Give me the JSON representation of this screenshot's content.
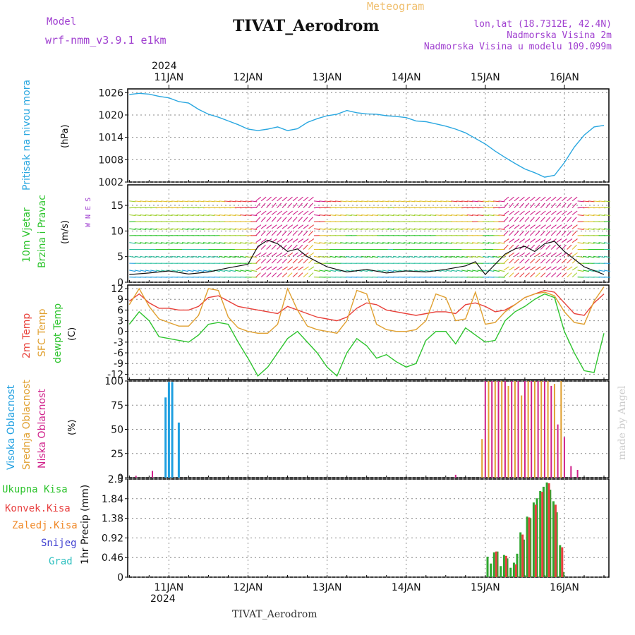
{
  "header": {
    "model_label": "Model",
    "model_name": "wrf-nmm_v3.9.1 e1km",
    "meteogram_label": "Meteogram",
    "station_title": "TIVAT_Aerodrom",
    "lonlat": "lon,lat (18.7312E, 42.4N)",
    "elevation": "Nadmorska Visina 2m",
    "model_elevation": "Nadmorska Visina u modelu 109.099m",
    "top_year": "2024",
    "bottom_year": "2024",
    "footer_station": "TIVAT_Aerodrom",
    "watermark": "made by Angel"
  },
  "colors": {
    "pressure": "#2aa7e0",
    "temp2m": "#e8413a",
    "sfc": "#e0a030",
    "dewpt": "#2ec42e",
    "high_cloud": "#1f9fe0",
    "mid_cloud": "#e0a030",
    "low_cloud": "#d0208a",
    "precip_total": "#2ea62e",
    "precip_conv": "#e84040",
    "precip_frz": "#f08a2a",
    "snow": "#4040d0",
    "grad": "#30c0c0",
    "purple": "#a040d0"
  },
  "x_axis": {
    "days": [
      "11JAN",
      "12JAN",
      "13JAN",
      "14JAN",
      "15JAN",
      "16JAN"
    ],
    "day_offsets_h": [
      0,
      24,
      48,
      72,
      96,
      120
    ],
    "range_h": [
      -12.5,
      133.5
    ]
  },
  "chart_data": [
    {
      "type": "line",
      "ylabel_main": "Pritisak na nivou mora",
      "ylabel_unit": "(hPa)",
      "ylim": [
        1002,
        1027
      ],
      "yticks": [
        1002,
        1008,
        1014,
        1020,
        1026
      ],
      "grid": true,
      "series": [
        {
          "x": [
            -12,
            -9,
            -6,
            -3,
            0,
            3,
            6,
            9,
            12,
            15,
            18,
            21,
            24,
            27,
            30,
            33,
            36,
            39,
            42,
            45,
            48,
            51,
            54,
            57,
            60,
            63,
            66,
            69,
            72,
            75,
            78,
            81,
            84,
            87,
            90,
            93,
            96,
            99,
            102,
            105,
            108,
            111,
            114,
            117,
            120,
            123,
            126,
            129,
            132
          ],
          "values": [
            1025.5,
            1025.8,
            1025.6,
            1025.0,
            1024.6,
            1023.6,
            1023.2,
            1021.5,
            1020.2,
            1019.4,
            1018.4,
            1017.4,
            1016.2,
            1015.8,
            1016.2,
            1016.8,
            1015.8,
            1016.3,
            1018.0,
            1019.0,
            1019.8,
            1020.2,
            1021.2,
            1020.6,
            1020.3,
            1020.2,
            1019.8,
            1019.6,
            1019.3,
            1018.4,
            1018.2,
            1017.6,
            1017.0,
            1016.2,
            1015.2,
            1013.7,
            1012.2,
            1010.3,
            1008.6,
            1007.0,
            1005.5,
            1004.5,
            1003.3,
            1003.8,
            1007.2,
            1011.4,
            1014.6,
            1016.8,
            1017.2
          ]
        }
      ]
    },
    {
      "type": "line",
      "ylabel_main": "10m Vjetar",
      "ylabel_sub": "Brzina i Pravac",
      "ylabel_unit": "(m/s)",
      "compass": "W  N  E  S",
      "ylim": [
        0,
        19
      ],
      "yticks": [
        0,
        5,
        10,
        15
      ],
      "grid": true,
      "series": [
        {
          "x": [
            -12,
            -6,
            0,
            6,
            12,
            18,
            24,
            27,
            30,
            33,
            36,
            39,
            42,
            48,
            54,
            60,
            66,
            72,
            78,
            84,
            90,
            93,
            96,
            99,
            102,
            105,
            108,
            111,
            114,
            117,
            120,
            126,
            132
          ],
          "values": [
            1.5,
            1.8,
            2.2,
            1.6,
            2.0,
            2.8,
            3.5,
            7.0,
            8.2,
            7.5,
            6.0,
            6.5,
            5.0,
            3.0,
            2.0,
            2.5,
            1.8,
            2.2,
            2.0,
            2.5,
            3.2,
            4.0,
            1.5,
            3.5,
            5.5,
            6.5,
            7.0,
            6.0,
            7.5,
            8.0,
            6.0,
            3.0,
            1.5
          ]
        }
      ]
    },
    {
      "type": "line",
      "ylabel_a": "2m Temp",
      "ylabel_b": "SFC Temp",
      "ylabel_c": "dewpt Temp",
      "ylabel_unit": "(C)",
      "ylim": [
        -13.5,
        13
      ],
      "yticks": [
        -12,
        -9,
        -6,
        -3,
        0,
        3,
        6,
        9,
        12
      ],
      "grid": true,
      "series": [
        {
          "key": "temp2m",
          "x": [
            -12,
            -9,
            -6,
            -3,
            0,
            3,
            6,
            9,
            12,
            15,
            18,
            21,
            24,
            27,
            30,
            33,
            36,
            39,
            42,
            45,
            48,
            51,
            54,
            57,
            60,
            63,
            66,
            69,
            72,
            75,
            78,
            81,
            84,
            87,
            90,
            93,
            96,
            99,
            102,
            105,
            108,
            111,
            114,
            117,
            120,
            123,
            126,
            129,
            132
          ],
          "values": [
            8.5,
            10.5,
            8.0,
            6.5,
            6.5,
            6.0,
            6.0,
            7.0,
            9.5,
            10.0,
            8.5,
            7.0,
            6.5,
            6.0,
            5.5,
            5.0,
            7.0,
            6.0,
            5.0,
            4.0,
            3.5,
            3.0,
            4.0,
            6.5,
            8.0,
            7.5,
            6.0,
            5.5,
            5.0,
            4.5,
            5.0,
            5.5,
            5.5,
            5.0,
            7.5,
            8.0,
            7.0,
            5.5,
            6.0,
            7.5,
            9.5,
            10.5,
            11.5,
            11.0,
            8.0,
            5.0,
            4.5,
            8.0,
            10.5
          ]
        },
        {
          "key": "sfc",
          "x": [
            -12,
            -9,
            -6,
            -3,
            0,
            3,
            6,
            9,
            12,
            15,
            18,
            21,
            24,
            27,
            30,
            33,
            36,
            39,
            42,
            45,
            48,
            51,
            54,
            57,
            60,
            63,
            66,
            69,
            72,
            75,
            78,
            81,
            84,
            87,
            90,
            93,
            96,
            99,
            102,
            105,
            108,
            111,
            114,
            117,
            120,
            123,
            126,
            129,
            132
          ],
          "values": [
            7.5,
            12.0,
            7.0,
            3.5,
            2.5,
            1.5,
            1.5,
            4.5,
            12.0,
            11.5,
            4.0,
            1.0,
            0.0,
            -0.5,
            -0.5,
            2.0,
            12.0,
            6.0,
            1.5,
            0.5,
            0.0,
            -0.5,
            3.0,
            11.5,
            10.5,
            2.0,
            0.5,
            0.0,
            0.0,
            0.5,
            3.0,
            10.5,
            9.5,
            3.0,
            3.5,
            11.0,
            2.0,
            2.5,
            5.5,
            7.5,
            9.5,
            10.5,
            11.0,
            10.0,
            5.5,
            2.5,
            2.0,
            8.5,
            12.5
          ]
        },
        {
          "key": "dewpt",
          "x": [
            -12,
            -9,
            -6,
            -3,
            0,
            3,
            6,
            9,
            12,
            15,
            18,
            21,
            24,
            27,
            30,
            33,
            36,
            39,
            42,
            45,
            48,
            51,
            54,
            57,
            60,
            63,
            66,
            69,
            72,
            75,
            78,
            81,
            84,
            87,
            90,
            93,
            96,
            99,
            102,
            105,
            108,
            111,
            114,
            117,
            120,
            123,
            126,
            129,
            132
          ],
          "values": [
            2.0,
            5.5,
            3.0,
            -1.5,
            -2.0,
            -2.5,
            -3.0,
            -1.0,
            2.0,
            2.5,
            2.0,
            -3.0,
            -7.5,
            -12.5,
            -10.0,
            -6.0,
            -2.0,
            0.0,
            -3.0,
            -6.0,
            -10.0,
            -12.5,
            -6.0,
            -2.0,
            -4.0,
            -7.5,
            -6.5,
            -8.5,
            -10.0,
            -9.0,
            -2.5,
            0.0,
            0.0,
            -3.5,
            1.0,
            -1.0,
            -3.0,
            -2.5,
            3.0,
            5.5,
            7.0,
            9.0,
            10.5,
            9.5,
            0.0,
            -6.0,
            -11.0,
            -11.5,
            -0.5
          ]
        }
      ]
    },
    {
      "type": "bar",
      "ylabel_a": "Visoka Oblacnost",
      "ylabel_b": "Srednja Oblacnost",
      "ylabel_c": "Niska Oblacnost",
      "ylabel_unit": "(%)",
      "ylim": [
        0,
        100
      ],
      "yticks": [
        0,
        25,
        50,
        75,
        100
      ],
      "grid": true,
      "series": [
        {
          "key": "high_cloud",
          "x": [
            -1,
            0,
            1,
            3
          ],
          "values": [
            83,
            99,
            99,
            57
          ]
        },
        {
          "key": "mid_cloud",
          "x": [
            95,
            97,
            99,
            101,
            103,
            105,
            107,
            109,
            111,
            113,
            115,
            117,
            119
          ],
          "values": [
            40,
            100,
            100,
            100,
            95,
            100,
            85,
            100,
            100,
            100,
            100,
            97,
            100
          ]
        },
        {
          "key": "low_cloud",
          "x": [
            -10,
            -5,
            87,
            96,
            98,
            100,
            102,
            104,
            106,
            108,
            110,
            112,
            114,
            116,
            118,
            120,
            122,
            124
          ],
          "values": [
            2,
            7,
            3,
            100,
            100,
            100,
            100,
            100,
            100,
            100,
            100,
            100,
            100,
            95,
            55,
            42,
            12,
            8
          ]
        }
      ]
    },
    {
      "type": "bar",
      "ylabel_main": "1hr Precip",
      "ylabel_unit": "(mm)",
      "legend": [
        "Ukupna Kisa",
        "Konvek.Kisa",
        "Zaledj.Kisa",
        "Snijeg",
        "Grad"
      ],
      "ylim": [
        0,
        2.3
      ],
      "yticks": [
        0,
        0.46,
        0.92,
        1.38,
        1.84,
        2.3
      ],
      "ytick_labels": [
        "0",
        "0.46",
        "0.92",
        "1.38",
        "1.84",
        "2.3"
      ],
      "grid": true,
      "x": [
        97,
        98,
        99,
        100,
        101,
        102,
        103,
        104,
        105,
        106,
        107,
        108,
        109,
        110,
        111,
        112,
        113,
        114,
        115,
        116,
        117,
        118,
        119,
        120
      ],
      "series": [
        {
          "key": "precip_total",
          "values": [
            0.48,
            0.32,
            0.58,
            0.6,
            0.26,
            0.52,
            0.44,
            0.22,
            0.34,
            0.55,
            1.05,
            0.88,
            1.42,
            1.38,
            1.75,
            1.85,
            2.02,
            2.12,
            2.22,
            2.05,
            1.78,
            1.52,
            0.75,
            0.12
          ]
        },
        {
          "key": "precip_conv",
          "values": [
            0.0,
            0.0,
            0.6,
            0.0,
            0.0,
            0.5,
            0.0,
            0.0,
            0.3,
            0.0,
            1.0,
            0.0,
            1.4,
            0.0,
            1.7,
            0.0,
            2.0,
            0.0,
            2.2,
            0.0,
            1.7,
            0.0,
            0.7,
            0.0
          ]
        },
        {
          "key": "precip_frz",
          "values": [
            0.0,
            0.0,
            0.0,
            0.0,
            0.0,
            0.0,
            0.0,
            0.0,
            0.0,
            0.0,
            0.0,
            0.0,
            0.0,
            0.0,
            0.0,
            0.0,
            0.0,
            0.0,
            0.0,
            0.0,
            0.0,
            0.0,
            0.0,
            0.0
          ]
        }
      ]
    }
  ]
}
